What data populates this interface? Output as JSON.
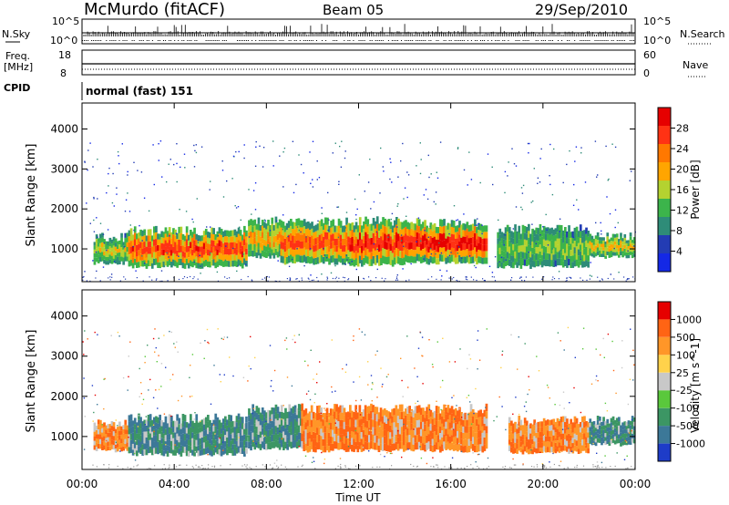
{
  "header": {
    "station": "McMurdo (fitACF)",
    "beam": "Beam 05",
    "date": "29/Sep/2010"
  },
  "status": {
    "nsky_label": "N.Sky",
    "nsearch_label": "N.Search",
    "freq_label": "Freq.",
    "freq_unit": "[MHz]",
    "nave_label": "Nave",
    "cpid_label": "CPID",
    "cpid_value": "normal (fast) 151",
    "noise_ticks_left": [
      "10^5",
      "10^0"
    ],
    "noise_ticks_right": [
      "10^5",
      "10^0"
    ],
    "freq_ticks": [
      "18",
      "8"
    ],
    "nave_ticks": [
      "60",
      "0"
    ]
  },
  "chart_data": [
    {
      "type": "heatmap",
      "title": "",
      "xlabel": "",
      "ylabel": "Slant Range [km]",
      "xlim_hours": [
        0,
        24
      ],
      "ylim": [
        180,
        4650
      ],
      "yticks": [
        "4000",
        "3000",
        "2000",
        "1000"
      ],
      "colorbar_label": "Power [dB]",
      "colorbar_ticks": [
        "28",
        "24",
        "20",
        "16",
        "12",
        "8",
        "4"
      ],
      "colorbar_colors": [
        "#1428e6",
        "#233cb4",
        "#2e8c78",
        "#3cb44b",
        "#b4d230",
        "#ffa500",
        "#ff7800",
        "#ff3214",
        "#e60000"
      ],
      "echo_bands": [
        {
          "start_h": 0.5,
          "end_h": 2.0,
          "low_km": 650,
          "high_km": 1300,
          "level": 0.35
        },
        {
          "start_h": 2.0,
          "end_h": 7.2,
          "low_km": 550,
          "high_km": 1450,
          "level": 0.85
        },
        {
          "start_h": 7.2,
          "end_h": 8.6,
          "low_km": 800,
          "high_km": 1700,
          "level": 0.55
        },
        {
          "start_h": 8.6,
          "end_h": 11.6,
          "low_km": 650,
          "high_km": 1700,
          "level": 0.8
        },
        {
          "start_h": 11.6,
          "end_h": 14.0,
          "low_km": 600,
          "high_km": 1700,
          "level": 0.9
        },
        {
          "start_h": 14.0,
          "end_h": 17.6,
          "low_km": 650,
          "high_km": 1650,
          "level": 0.95
        },
        {
          "start_h": 18.0,
          "end_h": 22.0,
          "low_km": 550,
          "high_km": 1500,
          "level": 0.25
        },
        {
          "start_h": 22.0,
          "end_h": 24.0,
          "low_km": 800,
          "high_km": 1300,
          "level": 0.45
        }
      ]
    },
    {
      "type": "heatmap",
      "title": "",
      "xlabel": "Time UT",
      "ylabel": "Slant Range [km]",
      "xlim_hours": [
        0,
        24
      ],
      "ylim": [
        180,
        4650
      ],
      "xticks": [
        "00:00",
        "04:00",
        "08:00",
        "12:00",
        "16:00",
        "20:00",
        "00:00"
      ],
      "yticks": [
        "4000",
        "3000",
        "2000",
        "1000"
      ],
      "colorbar_label": "Velocity [m s^-1]",
      "colorbar_ticks": [
        "1000",
        "500",
        "100",
        "25",
        "-25",
        "-100",
        "-500",
        "-1000"
      ],
      "colorbar_colors": [
        "#1e3cc8",
        "#3c7898",
        "#3c9664",
        "#5ac83c",
        "#c8c8c8",
        "#ffd24b",
        "#ff9628",
        "#ff6414",
        "#e60000"
      ],
      "echo_bands": [
        {
          "start_h": 0.5,
          "end_h": 2.0,
          "low_km": 650,
          "high_km": 1300,
          "sign": "away"
        },
        {
          "start_h": 2.0,
          "end_h": 7.2,
          "low_km": 550,
          "high_km": 1450,
          "sign": "toward"
        },
        {
          "start_h": 7.2,
          "end_h": 9.5,
          "low_km": 700,
          "high_km": 1700,
          "sign": "toward"
        },
        {
          "start_h": 9.5,
          "end_h": 17.6,
          "low_km": 650,
          "high_km": 1700,
          "sign": "away"
        },
        {
          "start_h": 18.5,
          "end_h": 22.0,
          "low_km": 600,
          "high_km": 1400,
          "sign": "away"
        },
        {
          "start_h": 22.0,
          "end_h": 24.0,
          "low_km": 800,
          "high_km": 1400,
          "sign": "toward"
        }
      ]
    }
  ]
}
